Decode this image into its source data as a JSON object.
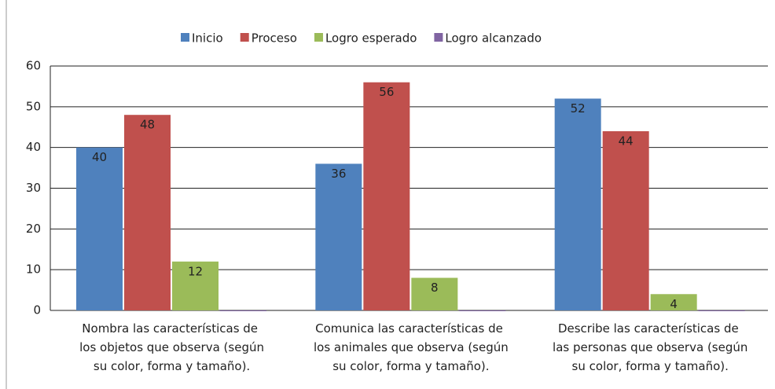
{
  "chart_data": {
    "type": "bar",
    "categories": [
      "Nombra las características de los objetos que observa (según su color, forma y tamaño).",
      "Comunica las características de los animales que observa (según su color, forma y tamaño).",
      "Describe las características de las personas que observa (según su color, forma y tamaño)."
    ],
    "series": [
      {
        "name": "Inicio",
        "color": "#4f81bd",
        "values": [
          40,
          36,
          52
        ]
      },
      {
        "name": "Proceso",
        "color": "#c0504d",
        "values": [
          48,
          56,
          44
        ]
      },
      {
        "name": "Logro esperado",
        "color": "#9bbb59",
        "values": [
          12,
          8,
          4
        ]
      },
      {
        "name": "Logro alcanzado",
        "color": "#8064a2",
        "values": [
          0,
          0,
          0
        ]
      }
    ],
    "ylim": [
      0,
      60
    ],
    "yticks": [
      0,
      10,
      20,
      30,
      40,
      50,
      60
    ],
    "grid": true,
    "legend": "top"
  }
}
